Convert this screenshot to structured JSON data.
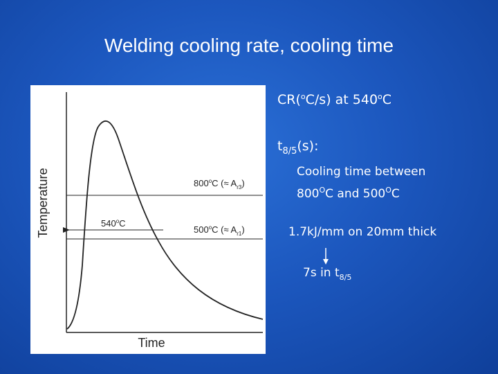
{
  "title": "Welding cooling rate, cooling time",
  "figure": {
    "y_label": "Temperature",
    "x_label": "Time",
    "label_800": [
      "800",
      "o",
      "C (≈ A",
      "r3",
      ")"
    ],
    "label_540": [
      "540",
      "o",
      "C"
    ],
    "label_500": [
      "500",
      "o",
      "C (≈ A",
      "r1",
      ")"
    ]
  },
  "notes": {
    "cooling_rate": [
      "CR(",
      "o",
      "C/s) at 540",
      "o",
      "C"
    ],
    "t85": [
      "t",
      "8/5",
      "(s):"
    ],
    "definition_1": "Cooling time between",
    "definition_2": [
      "800",
      "O",
      "C and 500",
      "O",
      "C"
    ],
    "example": "1.7kJ/mm on 20mm thick",
    "result": [
      "7s in t",
      "8/5"
    ]
  }
}
